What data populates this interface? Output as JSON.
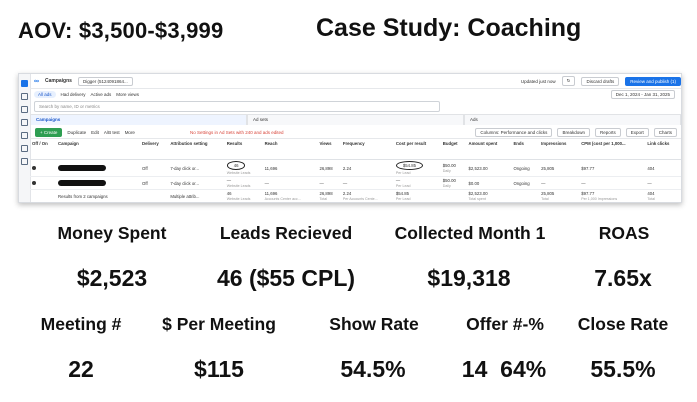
{
  "header": {
    "aov": "AOV: $3,500-$3,999",
    "title": "Case Study: Coaching"
  },
  "ads_manager": {
    "app_name": "Campaigns",
    "account": "Digger (5124091864...",
    "updated": "Updated just now",
    "discard": "Discard drafts",
    "publish": "Review and publish (1)",
    "filters": [
      "All ads",
      "Had delivery",
      "Active ads",
      "More views"
    ],
    "date_range": "Dec 1, 2024 - Jan 31, 2025",
    "search_placeholder": "Search by name, ID or metrics",
    "tabs": [
      "Campaigns",
      "Ad sets",
      "Ads"
    ],
    "toolbar": {
      "create": "+ Create",
      "duplicate": "Duplicate",
      "edit": "Edit",
      "ab_test": "A/B test",
      "more": "More",
      "warning": "No Settings in Ad Sets with 240 and ads edited",
      "columns": "Columns: Performance and clicks",
      "breakdown": "Breakdown",
      "reports": "Reports",
      "export": "Export",
      "charts": "Charts"
    },
    "columns": [
      "Off / On",
      "Campaign",
      "Delivery",
      "Attribution setting",
      "Results",
      "Reach",
      "Views",
      "Frequency",
      "Cost per result",
      "Budget",
      "Amount spent",
      "Ends",
      "Impressions",
      "CPM (cost per 1,000...",
      "Link clicks"
    ],
    "rows": [
      {
        "delivery": "Off",
        "attribution": "7-day click or...",
        "results": "46",
        "results_sub": "Website Leads",
        "reach": "11,696",
        "views": "26,898",
        "frequency": "2.24",
        "cpr": "$54.85",
        "cpr_sub": "Per Lead",
        "budget": "$50.00",
        "budget_sub": "Daily",
        "spent": "$2,523.00",
        "ends": "Ongoing",
        "impressions": "25,805",
        "cpm": "$97.77",
        "clicks": "404"
      },
      {
        "delivery": "Off",
        "attribution": "7-day click or...",
        "results": "—",
        "results_sub": "Website Leads",
        "reach": "—",
        "views": "—",
        "frequency": "—",
        "cpr": "—",
        "cpr_sub": "Per Lead",
        "budget": "$50.00",
        "budget_sub": "Daily",
        "spent": "$0.00",
        "ends": "Ongoing",
        "impressions": "—",
        "cpm": "—",
        "clicks": "—"
      }
    ],
    "totals": {
      "label": "Results from 2 campaigns",
      "attribution": "Multiple attrib...",
      "results": "46",
      "results_sub": "Website Leads",
      "reach": "11,696",
      "reach_sub": "Accounts Center acc...",
      "views": "26,898",
      "views_sub": "Total",
      "frequency": "2.24",
      "frequency_sub": "Per Accounts Cente...",
      "cpr": "$54.85",
      "cpr_sub": "Per Lead",
      "spent": "$2,523.00",
      "spent_sub": "Total spent",
      "impressions": "25,805",
      "impressions_sub": "Total",
      "cpm": "$97.77",
      "cpm_sub": "Per 1,000 Impressions",
      "clicks": "404",
      "clicks_sub": "Total"
    }
  },
  "metrics": [
    {
      "label": "Money Spent",
      "value": "$2,523"
    },
    {
      "label": "Leads Recieved",
      "value": "46 ($55 CPL)"
    },
    {
      "label": "Collected Month 1",
      "value": "$19,318"
    },
    {
      "label": "ROAS",
      "value": "7.65x"
    },
    {
      "label": "Meeting #",
      "value": "22"
    },
    {
      "label": "$ Per Meeting",
      "value": "$115"
    },
    {
      "label": "Show Rate",
      "value": "54.5%"
    },
    {
      "label": "Offer #-%",
      "value": "14  64%"
    },
    {
      "label": "Close Rate",
      "value": "55.5%"
    }
  ]
}
